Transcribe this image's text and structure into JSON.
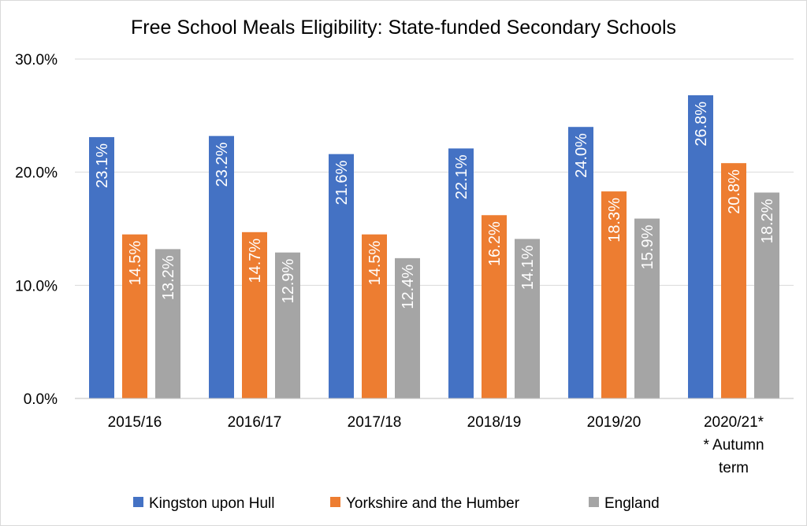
{
  "chart_data": {
    "type": "bar",
    "title": "Free School Meals Eligibility: State-funded Secondary Schools",
    "xlabel": "",
    "ylabel": "",
    "categories": [
      "2015/16",
      "2016/17",
      "2017/18",
      "2018/19",
      "2019/20",
      "2020/21*\n* Autumn\nterm"
    ],
    "series": [
      {
        "name": "Kingston upon Hull",
        "color": "#4472C4",
        "values": [
          23.1,
          23.2,
          21.6,
          22.1,
          24.0,
          26.8
        ]
      },
      {
        "name": "Yorkshire and the Humber",
        "color": "#ED7D31",
        "values": [
          14.5,
          14.7,
          14.5,
          16.2,
          18.3,
          20.8
        ]
      },
      {
        "name": "England",
        "color": "#A5A5A5",
        "values": [
          13.2,
          12.9,
          12.4,
          14.1,
          15.9,
          18.2
        ]
      }
    ],
    "ylim": [
      0,
      30
    ],
    "yticks": [
      0,
      10,
      20,
      30
    ],
    "ytick_labels": [
      "0.0%",
      "10.0%",
      "20.0%",
      "30.0%"
    ],
    "data_label_format": "percent-1dp",
    "data_label_orientation": "vertical",
    "grid": true,
    "legend_position": "bottom"
  }
}
